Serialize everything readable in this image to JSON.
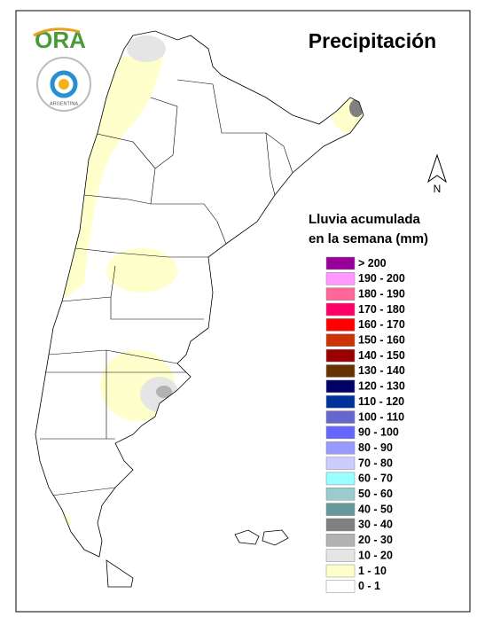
{
  "header": {
    "title": "Precipitación"
  },
  "logo": {
    "name": "ORA",
    "emblem_text": "ARGENTINA"
  },
  "compass": {
    "label": "N"
  },
  "legend": {
    "title": [
      "Lluvia acumulada",
      "en la semana (mm)"
    ],
    "items": [
      {
        "label": "> 200",
        "color": "#990099"
      },
      {
        "label": "190 - 200",
        "color": "#ff99ff"
      },
      {
        "label": "180 - 190",
        "color": "#ff6699"
      },
      {
        "label": "170 - 180",
        "color": "#ff0066"
      },
      {
        "label": "160 - 170",
        "color": "#ff0000"
      },
      {
        "label": "150 - 160",
        "color": "#cc3300"
      },
      {
        "label": "140 - 150",
        "color": "#990000"
      },
      {
        "label": "130 - 140",
        "color": "#663300"
      },
      {
        "label": "120 - 130",
        "color": "#000066"
      },
      {
        "label": "110 - 120",
        "color": "#003399"
      },
      {
        "label": "100 - 110",
        "color": "#6666cc"
      },
      {
        "label": "90 - 100",
        "color": "#6666ff"
      },
      {
        "label": "80 - 90",
        "color": "#9999ff"
      },
      {
        "label": "70 - 80",
        "color": "#ccccff"
      },
      {
        "label": "60 - 70",
        "color": "#99ffff"
      },
      {
        "label": "50 - 60",
        "color": "#99cccc"
      },
      {
        "label": "40 - 50",
        "color": "#669999"
      },
      {
        "label": "30 - 40",
        "color": "#808080"
      },
      {
        "label": "20 - 30",
        "color": "#b2b2b2"
      },
      {
        "label": "10 - 20",
        "color": "#e5e5e5"
      },
      {
        "label": "1 - 10",
        "color": "#ffffcc"
      },
      {
        "label": "0 - 1",
        "color": "#ffffff"
      }
    ]
  }
}
